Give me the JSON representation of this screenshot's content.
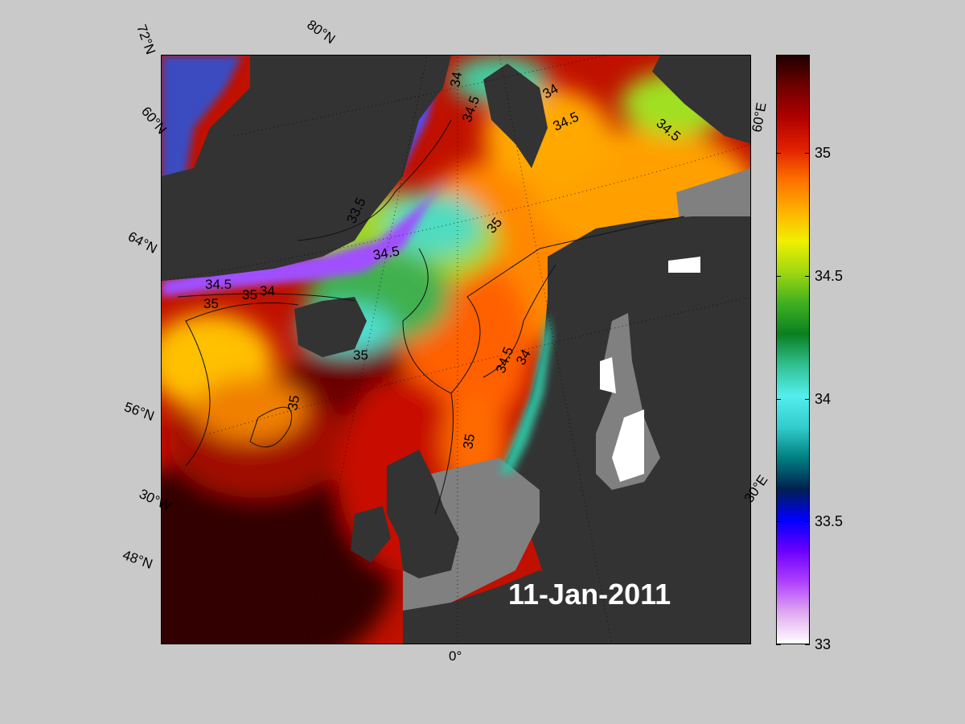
{
  "map": {
    "date": "11-Jan-2011",
    "graticule_labels": {
      "lat_72": "72°N",
      "lat_80": "80°N",
      "lat_60a": "60°N",
      "lat_64": "64°N",
      "lat_56": "56°N",
      "lat_48": "48°N",
      "lon_30w": "30°W",
      "lon_0": "0°",
      "lon_30e": "30°E",
      "lon_60e": "60°E"
    },
    "contour_labels": [
      "34",
      "34.5",
      "34",
      "34.5",
      "34.5",
      "33.5",
      "35",
      "34.5",
      "34.5",
      "35",
      "34",
      "35",
      "35",
      "34.5",
      "34",
      "35",
      "35"
    ],
    "colors": {
      "land": "#333333",
      "shelf": "#808080",
      "background": "#c9c9c9"
    }
  },
  "colorbar": {
    "min": 33,
    "max": 35.4,
    "ticks": [
      "35",
      "34.5",
      "34",
      "33.5",
      "33"
    ],
    "tick_values": [
      35,
      34.5,
      34,
      33.5,
      33
    ],
    "stops": [
      "#ffffff",
      "#e0a8f0",
      "#b040ff",
      "#6a00ff",
      "#0000ff",
      "#002050",
      "#008080",
      "#33cccc",
      "#55eeee",
      "#30c090",
      "#0a8020",
      "#40b020",
      "#a0d810",
      "#f0f000",
      "#ffb000",
      "#ff7000",
      "#e02000",
      "#b00000",
      "#700000",
      "#200000"
    ]
  }
}
